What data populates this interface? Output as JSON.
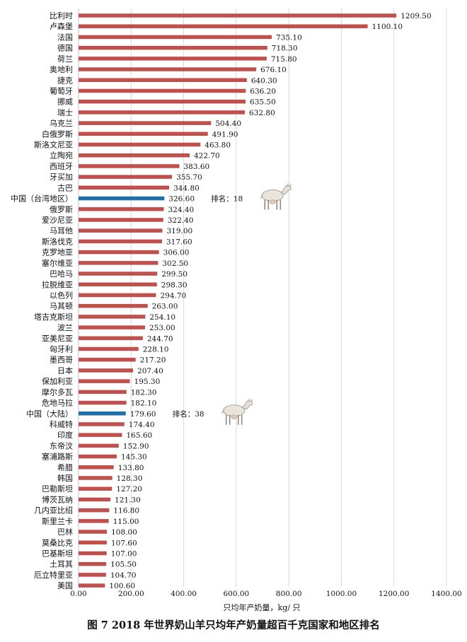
{
  "chart_data": {
    "type": "bar",
    "orientation": "horizontal",
    "categories": [
      "比利时",
      "卢森堡",
      "法国",
      "德国",
      "荷兰",
      "奥地利",
      "捷克",
      "葡萄牙",
      "挪威",
      "瑞士",
      "乌克兰",
      "白俄罗斯",
      "斯洛文尼亚",
      "立陶宛",
      "西班牙",
      "牙买加",
      "古巴",
      "中国（台湾地区）",
      "俄罗斯",
      "爱沙尼亚",
      "马耳他",
      "斯洛伐克",
      "克罗地亚",
      "塞尔维亚",
      "巴哈马",
      "拉脱维亚",
      "以色列",
      "马其顿",
      "塔吉克斯坦",
      "波兰",
      "亚美尼亚",
      "匈牙利",
      "墨西哥",
      "日本",
      "保加利亚",
      "摩尔多瓦",
      "危地马拉",
      "中国（大陆）",
      "科威特",
      "印度",
      "东帝汶",
      "塞浦路斯",
      "希腊",
      "韩国",
      "巴勒斯坦",
      "博茨瓦纳",
      "几内亚比绍",
      "斯里兰卡",
      "巴林",
      "莫桑比克",
      "巴基斯坦",
      "土耳其",
      "厄立特里亚",
      "美国"
    ],
    "values": [
      1209.5,
      1100.1,
      735.1,
      718.3,
      715.8,
      676.1,
      640.3,
      636.2,
      635.5,
      632.8,
      504.4,
      491.9,
      463.8,
      422.7,
      383.6,
      355.7,
      344.8,
      326.6,
      324.4,
      322.4,
      319.0,
      317.6,
      306.0,
      302.5,
      299.5,
      298.3,
      294.7,
      263.0,
      254.1,
      253.0,
      244.7,
      228.1,
      217.2,
      207.4,
      195.3,
      182.3,
      182.1,
      179.6,
      174.4,
      165.6,
      152.9,
      145.3,
      133.8,
      128.3,
      127.2,
      121.3,
      116.8,
      115.0,
      108.0,
      107.6,
      107.0,
      105.5,
      104.7,
      100.6
    ],
    "value_labels": [
      "1209.50",
      "1100.10",
      "735.10",
      "718.30",
      "715.80",
      "676.10",
      "640.30",
      "636.20",
      "635.50",
      "632.80",
      "504.40",
      "491.90",
      "463.80",
      "422.70",
      "383.60",
      "355.70",
      "344.80",
      "326.60",
      "324.40",
      "322.40",
      "319.00",
      "317.60",
      "306.00",
      "302.50",
      "299.50",
      "298.30",
      "294.70",
      "263.00",
      "254.10",
      "253.00",
      "244.70",
      "228.10",
      "217.20",
      "207.40",
      "195.30",
      "182.30",
      "182.10",
      "179.60",
      "174.40",
      "165.60",
      "152.90",
      "145.30",
      "133.80",
      "128.30",
      "127.20",
      "121.30",
      "116.80",
      "115.00",
      "108.00",
      "107.60",
      "107.00",
      "105.50",
      "104.70",
      "100.60"
    ],
    "highlight": [
      "中国（台湾地区）",
      "中国（大陆）"
    ],
    "rank_labels": {
      "中国（台湾地区）": "排名：18",
      "中国（大陆）": "排名：38"
    },
    "xlabel": "只均年产奶量，kg/ 只",
    "xlim": [
      0,
      1400
    ],
    "xticks": [
      "0.00",
      "200.00",
      "400.00",
      "600.00",
      "800.00",
      "1000.00",
      "1200.00",
      "1400.00"
    ],
    "grid": "vertical",
    "colors": {
      "bar": "#c0504d",
      "highlight": "#1f6fa8",
      "grid": "#d9d9d9"
    }
  },
  "caption": "图 7 2018 年世界奶山羊只均年产奶量超百千克国家和地区排名",
  "icons": [
    "goat-icon-taiwan",
    "goat-icon-mainland"
  ]
}
